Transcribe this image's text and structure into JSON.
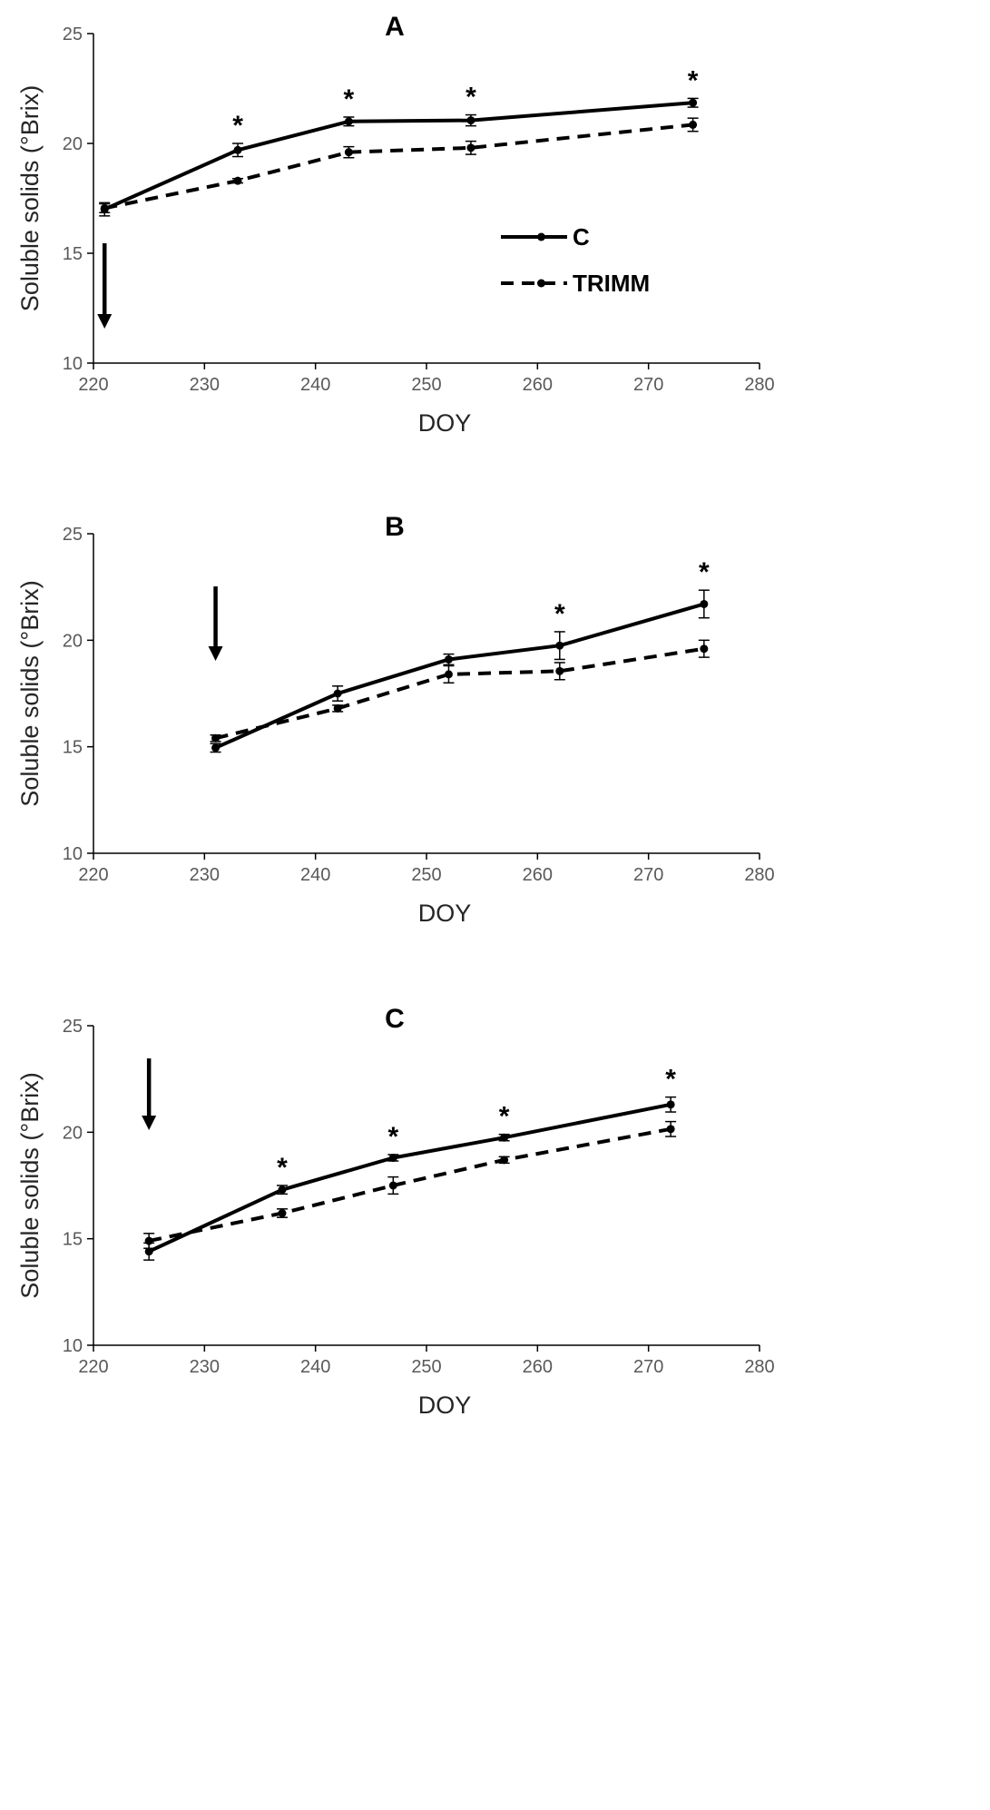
{
  "chart_data": [
    {
      "type": "line",
      "title": "A",
      "xlabel": "DOY",
      "ylabel": "Soluble solids (°Brix)",
      "xlim": [
        220,
        280
      ],
      "ylim": [
        10,
        25
      ],
      "xticks": [
        "220",
        "230",
        "240",
        "250",
        "260",
        "270",
        "280"
      ],
      "yticks": [
        "10",
        "15",
        "20",
        "25"
      ],
      "legend": {
        "placement": "right",
        "entries": [
          "C",
          "TRIMM"
        ]
      },
      "treatment_arrow_doy": 221,
      "series": [
        {
          "name": "C",
          "style": "solid",
          "x": [
            221,
            233,
            243,
            254,
            274
          ],
          "y": [
            17.0,
            19.7,
            21.0,
            21.05,
            21.85
          ],
          "err": [
            0.3,
            0.3,
            0.2,
            0.25,
            0.2
          ]
        },
        {
          "name": "TRIMM",
          "style": "dashed",
          "x": [
            221,
            233,
            243,
            254,
            274
          ],
          "y": [
            17.05,
            18.3,
            19.6,
            19.8,
            20.85
          ],
          "err": [
            0.2,
            0.1,
            0.25,
            0.3,
            0.3
          ]
        }
      ],
      "significant": [
        {
          "x": 233,
          "label": "*"
        },
        {
          "x": 243,
          "label": "*"
        },
        {
          "x": 254,
          "label": "*"
        },
        {
          "x": 274,
          "label": "*"
        }
      ]
    },
    {
      "type": "line",
      "title": "B",
      "xlabel": "DOY",
      "ylabel": "Soluble solids (°Brix)",
      "xlim": [
        220,
        280
      ],
      "ylim": [
        10,
        25
      ],
      "xticks": [
        "220",
        "230",
        "240",
        "250",
        "260",
        "270",
        "280"
      ],
      "yticks": [
        "10",
        "15",
        "20",
        "25"
      ],
      "treatment_arrow_doy": 231,
      "series": [
        {
          "name": "C",
          "style": "solid",
          "x": [
            231,
            242,
            252,
            262,
            275
          ],
          "y": [
            14.95,
            17.5,
            19.1,
            19.75,
            21.7
          ],
          "err": [
            0.2,
            0.35,
            0.25,
            0.65,
            0.65
          ]
        },
        {
          "name": "TRIMM",
          "style": "dashed",
          "x": [
            231,
            242,
            252,
            262,
            275
          ],
          "y": [
            15.4,
            16.8,
            18.4,
            18.55,
            19.6
          ],
          "err": [
            0.15,
            0.15,
            0.4,
            0.4,
            0.4
          ]
        }
      ],
      "significant": [
        {
          "x": 262,
          "label": "*"
        },
        {
          "x": 275,
          "label": "*"
        }
      ]
    },
    {
      "type": "line",
      "title": "C",
      "xlabel": "DOY",
      "ylabel": "Soluble solids (°Brix)",
      "xlim": [
        220,
        280
      ],
      "ylim": [
        10,
        25
      ],
      "xticks": [
        "220",
        "230",
        "240",
        "250",
        "260",
        "270",
        "280"
      ],
      "yticks": [
        "10",
        "15",
        "20",
        "25"
      ],
      "treatment_arrow_doy": 225,
      "series": [
        {
          "name": "C",
          "style": "solid",
          "x": [
            225,
            237,
            247,
            257,
            272
          ],
          "y": [
            14.4,
            17.3,
            18.8,
            19.75,
            21.3
          ],
          "err": [
            0.4,
            0.2,
            0.15,
            0.15,
            0.35
          ]
        },
        {
          "name": "TRIMM",
          "style": "dashed",
          "x": [
            225,
            237,
            247,
            257,
            272
          ],
          "y": [
            14.9,
            16.2,
            17.5,
            18.7,
            20.15
          ],
          "err": [
            0.35,
            0.2,
            0.4,
            0.15,
            0.35
          ]
        }
      ],
      "significant": [
        {
          "x": 237,
          "label": "*"
        },
        {
          "x": 247,
          "label": "*"
        },
        {
          "x": 257,
          "label": "*"
        },
        {
          "x": 272,
          "label": "*"
        }
      ]
    }
  ]
}
